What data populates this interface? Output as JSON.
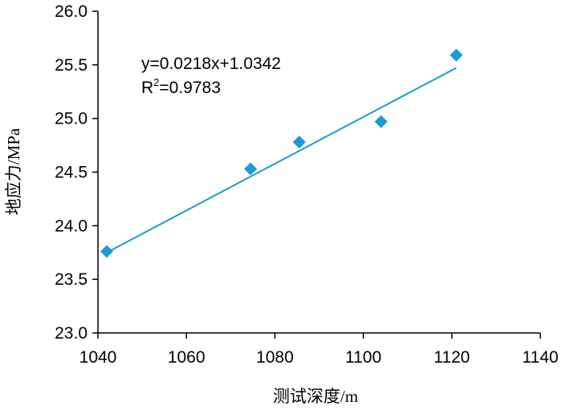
{
  "chart_data": {
    "type": "scatter",
    "title": "",
    "xlabel": "测试深度/m",
    "ylabel": "地应力/MPa",
    "xlim": [
      1040,
      1140
    ],
    "ylim": [
      23.0,
      26.0
    ],
    "x_ticks": [
      "1040",
      "1060",
      "1080",
      "1100",
      "1120",
      "1140"
    ],
    "y_ticks": [
      "23.0",
      "23.5",
      "24.0",
      "24.5",
      "25.0",
      "25.5",
      "26.0"
    ],
    "grid": false,
    "legend": "none",
    "series": [
      {
        "marker": "diamond",
        "color": "#1b9ad6",
        "x": [
          1042,
          1074.5,
          1085.5,
          1104,
          1121
        ],
        "y": [
          23.76,
          24.53,
          24.78,
          24.97,
          25.59
        ]
      }
    ],
    "trendline": {
      "color": "#1b9ad6",
      "slope": 0.0218,
      "intercept": 1.0342,
      "x_range": [
        1042,
        1121
      ],
      "equation_text": "y=0.0218x+1.0342",
      "r2_prefix": "R",
      "r2_sup": "2",
      "r2_value_text": "=0.9783"
    }
  }
}
